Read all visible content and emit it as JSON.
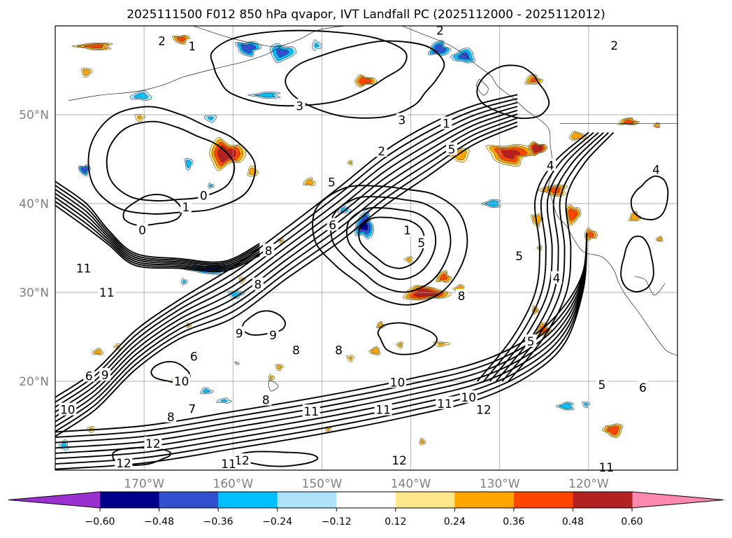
{
  "chart_data": {
    "type": "heatmap",
    "title": "2025111500 F012 850 hPa qvapor, IVT Landfall PC (2025112000 - 2025112012)",
    "xlabel": "",
    "ylabel": "",
    "xlim": [
      -180,
      -110
    ],
    "ylim": [
      10,
      60
    ],
    "grid": true,
    "x_ticks": [
      {
        "value": -170,
        "label": "170°W"
      },
      {
        "value": -160,
        "label": "160°W"
      },
      {
        "value": -150,
        "label": "150°W"
      },
      {
        "value": -140,
        "label": "140°W"
      },
      {
        "value": -130,
        "label": "130°W"
      },
      {
        "value": -120,
        "label": "120°W"
      }
    ],
    "y_ticks": [
      {
        "value": 20,
        "label": "20°N"
      },
      {
        "value": 30,
        "label": "30°N"
      },
      {
        "value": 40,
        "label": "40°N"
      },
      {
        "value": 50,
        "label": "50°N"
      }
    ],
    "colorbar": {
      "boundaries": [
        -0.6,
        -0.48,
        -0.36,
        -0.24,
        -0.12,
        0.12,
        0.24,
        0.36,
        0.48,
        0.6
      ],
      "tick_labels": [
        "−0.60",
        "−0.48",
        "−0.36",
        "−0.24",
        "−0.12",
        "0.12",
        "0.24",
        "0.36",
        "0.48",
        "0.60"
      ],
      "under_color": "#9b30d0",
      "over_color": "#ff88b0",
      "colors": [
        "#00008b",
        "#3050d0",
        "#00bfff",
        "#aee2fa",
        "#ffffff",
        "#ffe88c",
        "#ffa500",
        "#ff4500",
        "#b22222"
      ]
    },
    "contour_labels": [
      {
        "text": "2",
        "lon": -168.0,
        "lat": 58.3
      },
      {
        "text": "1",
        "lon": -164.6,
        "lat": 57.7
      },
      {
        "text": "3",
        "lon": -152.5,
        "lat": 51.0
      },
      {
        "text": "3",
        "lon": -141.0,
        "lat": 49.4
      },
      {
        "text": "2",
        "lon": -143.3,
        "lat": 45.9
      },
      {
        "text": "2",
        "lon": -136.7,
        "lat": 59.5
      },
      {
        "text": "2",
        "lon": -117.1,
        "lat": 57.8
      },
      {
        "text": "1",
        "lon": -136.0,
        "lat": 49.0
      },
      {
        "text": "5",
        "lon": -135.4,
        "lat": 46.1
      },
      {
        "text": "0",
        "lon": -170.2,
        "lat": 37.0
      },
      {
        "text": "0",
        "lon": -163.3,
        "lat": 40.9
      },
      {
        "text": "1",
        "lon": -165.3,
        "lat": 39.6
      },
      {
        "text": "5",
        "lon": -148.9,
        "lat": 42.4
      },
      {
        "text": "6",
        "lon": -148.8,
        "lat": 37.6
      },
      {
        "text": "1",
        "lon": -140.4,
        "lat": 37.0
      },
      {
        "text": "5",
        "lon": -138.8,
        "lat": 35.6
      },
      {
        "text": "5",
        "lon": -127.8,
        "lat": 34.1
      },
      {
        "text": "4",
        "lon": -123.6,
        "lat": 31.6
      },
      {
        "text": "5",
        "lon": -126.5,
        "lat": 24.5
      },
      {
        "text": "4",
        "lon": -124.3,
        "lat": 44.3
      },
      {
        "text": "4",
        "lon": -112.4,
        "lat": 43.8
      },
      {
        "text": "8",
        "lon": -156.0,
        "lat": 34.7
      },
      {
        "text": "8",
        "lon": -157.2,
        "lat": 30.9
      },
      {
        "text": "8",
        "lon": -134.3,
        "lat": 29.6
      },
      {
        "text": "8",
        "lon": -148.1,
        "lat": 23.5
      },
      {
        "text": "8",
        "lon": -152.9,
        "lat": 23.5
      },
      {
        "text": "9",
        "lon": -155.5,
        "lat": 25.2
      },
      {
        "text": "9",
        "lon": -159.3,
        "lat": 25.4
      },
      {
        "text": "9",
        "lon": -174.4,
        "lat": 20.7
      },
      {
        "text": "10",
        "lon": -165.8,
        "lat": 20.0
      },
      {
        "text": "10",
        "lon": -141.5,
        "lat": 19.9
      },
      {
        "text": "10",
        "lon": -133.5,
        "lat": 18.2
      },
      {
        "text": "11",
        "lon": -176.8,
        "lat": 32.7
      },
      {
        "text": "11",
        "lon": -174.2,
        "lat": 30.0
      },
      {
        "text": "11",
        "lon": -151.2,
        "lat": 16.6
      },
      {
        "text": "11",
        "lon": -143.1,
        "lat": 16.8
      },
      {
        "text": "11",
        "lon": -136.2,
        "lat": 17.5
      },
      {
        "text": "12",
        "lon": -169.0,
        "lat": 13.0
      },
      {
        "text": "12",
        "lon": -172.3,
        "lat": 10.8
      },
      {
        "text": "12",
        "lon": -159.0,
        "lat": 11.1
      },
      {
        "text": "12",
        "lon": -131.8,
        "lat": 16.8
      },
      {
        "text": "12",
        "lon": -141.3,
        "lat": 11.1
      },
      {
        "text": "11",
        "lon": -160.5,
        "lat": 10.7
      },
      {
        "text": "11",
        "lon": -118.0,
        "lat": 10.3
      },
      {
        "text": "10",
        "lon": -178.6,
        "lat": 16.8
      },
      {
        "text": "6",
        "lon": -176.2,
        "lat": 20.6
      },
      {
        "text": "6",
        "lon": -164.4,
        "lat": 22.8
      },
      {
        "text": "7",
        "lon": -164.6,
        "lat": 16.9
      },
      {
        "text": "8",
        "lon": -167.0,
        "lat": 16.0
      },
      {
        "text": "8",
        "lon": -156.3,
        "lat": 17.9
      },
      {
        "text": "6",
        "lon": -113.9,
        "lat": 19.3
      },
      {
        "text": "5",
        "lon": -118.5,
        "lat": 19.6
      }
    ]
  }
}
